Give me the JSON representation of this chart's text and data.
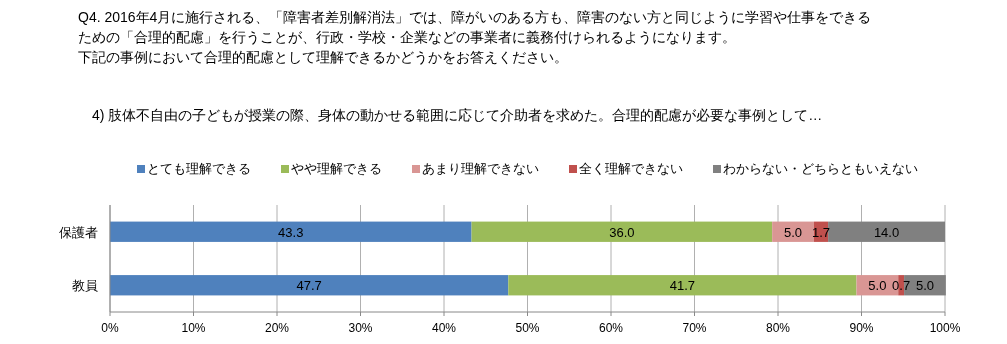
{
  "chart_data": {
    "type": "bar",
    "orientation": "horizontal",
    "stacked": true,
    "title": "Q4. 2016年4月に施行される、「障害者差別解消法」では、障がいのある方も、障害のない方と同じように学習や仕事をできるための「合理的配慮」を行うことが、行政・学校・企業などの事業者に義務付けられるようになります。下記の事例において合理的配慮として理解できるかどうかをお答えください。",
    "subtitle": "4) 肢体不自由の子どもが授業の際、身体の動かせる範囲に応じて介助者を求めた。合理的配慮が必要な事例として…",
    "categories": [
      "保護者",
      "教員"
    ],
    "series": [
      {
        "name": "とても理解できる",
        "color": "#4f81bd",
        "values": [
          43.3,
          47.7
        ],
        "value_labels": [
          "43.3",
          "47.7"
        ]
      },
      {
        "name": "やや理解できる",
        "color": "#9bbb59",
        "values": [
          36.0,
          41.7
        ],
        "value_labels": [
          "36.0",
          "41.7"
        ]
      },
      {
        "name": "あまり理解できない",
        "color": "#d99694",
        "values": [
          5.0,
          5.0
        ],
        "value_labels": [
          "5.0",
          "5.0"
        ]
      },
      {
        "name": "全く理解できない",
        "color": "#c0504d",
        "values": [
          1.7,
          0.7
        ],
        "value_labels": [
          "1.7",
          "0.7"
        ]
      },
      {
        "name": "わからない・どちらともいえない",
        "color": "#808080",
        "values": [
          14.0,
          5.0
        ],
        "value_labels": [
          "14.0",
          "5.0"
        ]
      }
    ],
    "xlim": [
      0,
      100
    ],
    "xticks": [
      {
        "value": 0,
        "label": "0%"
      },
      {
        "value": 10,
        "label": "10%"
      },
      {
        "value": 20,
        "label": "20%"
      },
      {
        "value": 30,
        "label": "30%"
      },
      {
        "value": 40,
        "label": "40%"
      },
      {
        "value": 50,
        "label": "50%"
      },
      {
        "value": 60,
        "label": "60%"
      },
      {
        "value": 70,
        "label": "70%"
      },
      {
        "value": 80,
        "label": "80%"
      },
      {
        "value": 90,
        "label": "90%"
      },
      {
        "value": 100,
        "label": "100%"
      }
    ],
    "grid": "x",
    "legend": "top"
  }
}
